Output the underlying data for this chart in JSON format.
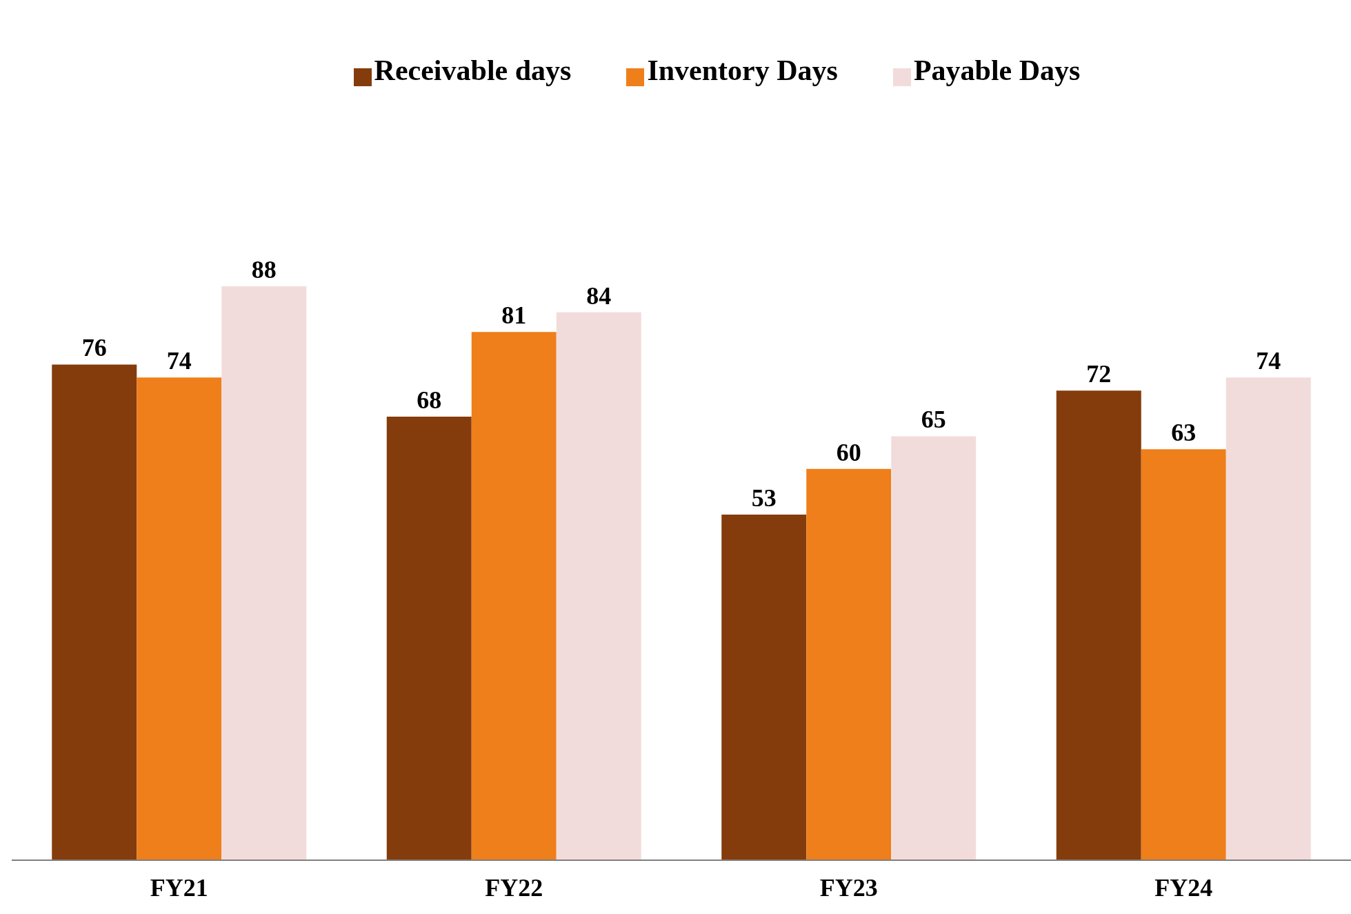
{
  "chart_data": {
    "type": "bar",
    "categories": [
      "FY21",
      "FY22",
      "FY23",
      "FY24"
    ],
    "series": [
      {
        "name": "Receivable days",
        "color": "#843c0c",
        "values": [
          76,
          68,
          53,
          72
        ]
      },
      {
        "name": "Inventory Days",
        "color": "#ef7f1a",
        "values": [
          74,
          81,
          60,
          63
        ]
      },
      {
        "name": "Payable Days",
        "color": "#f2dcdb",
        "values": [
          88,
          84,
          65,
          74
        ]
      }
    ],
    "data_labels": true,
    "legend": "top",
    "grid": false
  }
}
